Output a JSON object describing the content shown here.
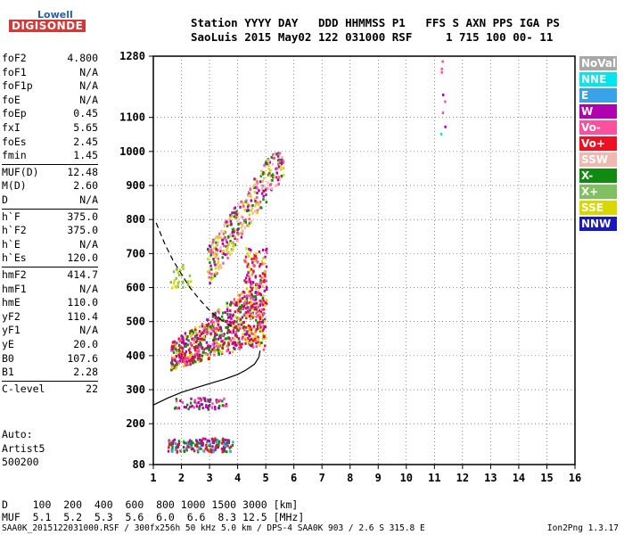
{
  "logo": {
    "line1": "Lowell",
    "line2": "DIGISONDE"
  },
  "header": {
    "line1": "Station YYYY DAY   DDD HHMMSS P1   FFS S AXN PPS IGA PS",
    "line2": "SaoLuis 2015 May02 122 031000 RSF     1 715 100 00- 11"
  },
  "params": [
    {
      "name": "foF2",
      "value": "4.800"
    },
    {
      "name": "foF1",
      "value": "N/A"
    },
    {
      "name": "foF1p",
      "value": "N/A"
    },
    {
      "name": "foE",
      "value": "N/A"
    },
    {
      "name": "foEp",
      "value": "0.45"
    },
    {
      "name": "fxI",
      "value": "5.65"
    },
    {
      "name": "foEs",
      "value": "2.45"
    },
    {
      "name": "fmin",
      "value": "1.45"
    },
    {
      "name": "MUF(D)",
      "value": "12.48"
    },
    {
      "name": "M(D)",
      "value": "2.60"
    },
    {
      "name": "D",
      "value": "N/A"
    },
    {
      "name": "h`F",
      "value": "375.0"
    },
    {
      "name": "h`F2",
      "value": "375.0"
    },
    {
      "name": "h`E",
      "value": "N/A"
    },
    {
      "name": "h`Es",
      "value": "120.0"
    },
    {
      "name": "hmF2",
      "value": "414.7"
    },
    {
      "name": "hmF1",
      "value": "N/A"
    },
    {
      "name": "hmE",
      "value": "110.0"
    },
    {
      "name": "yF2",
      "value": "110.4"
    },
    {
      "name": "yF1",
      "value": "N/A"
    },
    {
      "name": "yE",
      "value": "20.0"
    },
    {
      "name": "B0",
      "value": "107.6"
    },
    {
      "name": "B1",
      "value": "2.28"
    },
    {
      "name": "C-level",
      "value": "22"
    }
  ],
  "auto": {
    "line1": "Auto:",
    "line2": "Artist5",
    "line3": "500200"
  },
  "legend": [
    {
      "label": "NoVal",
      "color": "#a8a8a8"
    },
    {
      "label": "NNE",
      "color": "#00e5ee"
    },
    {
      "label": "E",
      "color": "#39a2e8"
    },
    {
      "label": "W",
      "color": "#b000b0"
    },
    {
      "label": "Vo-",
      "color": "#ff50a0"
    },
    {
      "label": "Vo+",
      "color": "#ee1020"
    },
    {
      "label": "SSW",
      "color": "#f2b8b0"
    },
    {
      "label": "X-",
      "color": "#108a10"
    },
    {
      "label": "X+",
      "color": "#80c060"
    },
    {
      "label": "SSE",
      "color": "#d8d800"
    },
    {
      "label": "NNW",
      "color": "#1818c0"
    }
  ],
  "muf_table": {
    "line1": "D    100  200  400  600  800 1000 1500 3000 [km]",
    "line2": "MUF  5.1  5.2  5.3  5.6  6.0  6.6  8.3 12.5 [MHz]"
  },
  "footer": "SAA0K_2015122031000.RSF / 300fx256h 50 kHz 5.0 km / DPS-4 SAA0K 903 / 2.6 S 315.8 E",
  "version": "Ion2Png 1.3.17",
  "chart_data": {
    "type": "scatter",
    "xlim": [
      1,
      16
    ],
    "ylim": [
      80,
      1280
    ],
    "x_ticks": [
      "1",
      "2",
      "3",
      "4",
      "5",
      "6",
      "7",
      "8",
      "9",
      "10",
      "11",
      "12",
      "13",
      "14",
      "15",
      "16"
    ],
    "y_ticks": [
      "80",
      "200",
      "300",
      "400",
      "500",
      "600",
      "700",
      "800",
      "900",
      "1000",
      "1100",
      "1280"
    ],
    "grid": true,
    "profile_curve": [
      [
        1.0,
        255
      ],
      [
        1.5,
        275
      ],
      [
        2.0,
        292
      ],
      [
        2.5,
        305
      ],
      [
        3.0,
        318
      ],
      [
        3.5,
        330
      ],
      [
        4.0,
        345
      ],
      [
        4.3,
        358
      ],
      [
        4.6,
        375
      ],
      [
        4.75,
        395
      ],
      [
        4.8,
        415
      ]
    ],
    "dashed_curve": [
      [
        1.1,
        790
      ],
      [
        1.4,
        730
      ],
      [
        1.7,
        680
      ],
      [
        2.0,
        640
      ],
      [
        2.3,
        600
      ],
      [
        2.7,
        560
      ],
      [
        3.1,
        525
      ],
      [
        3.5,
        500
      ],
      [
        3.9,
        480
      ]
    ],
    "clusters": [
      {
        "name": "F-trace-main",
        "x": [
          1.6,
          4.9
        ],
        "y": [
          360,
          560
        ],
        "colors": [
          "#ee1020",
          "#d8d800",
          "#108a10",
          "#b000b0",
          "#ff50a0"
        ],
        "count": 700
      },
      {
        "name": "F-trace-rise",
        "x": [
          4.2,
          5.0
        ],
        "y": [
          420,
          720
        ],
        "colors": [
          "#ee1020",
          "#b000b0",
          "#d8d800",
          "#ff50a0"
        ],
        "count": 180
      },
      {
        "name": "F2-second-hop",
        "x": [
          2.9,
          5.6
        ],
        "y": [
          640,
          1000
        ],
        "colors": [
          "#f2b8b0",
          "#d8d800",
          "#b000b0",
          "#ff50a0",
          "#108a10"
        ],
        "count": 360
      },
      {
        "name": "Es-layer",
        "x": [
          1.5,
          3.8
        ],
        "y": [
          120,
          160
        ],
        "colors": [
          "#108a10",
          "#b000b0",
          "#ee1020",
          "#39a2e8"
        ],
        "count": 160
      },
      {
        "name": "Es-second-hop",
        "x": [
          1.7,
          3.6
        ],
        "y": [
          245,
          280
        ],
        "colors": [
          "#108a10",
          "#b000b0",
          "#ff50a0"
        ],
        "count": 70
      },
      {
        "name": "low-F",
        "x": [
          1.5,
          2.3
        ],
        "y": [
          600,
          680
        ],
        "colors": [
          "#d8d800",
          "#80c060"
        ],
        "count": 30
      },
      {
        "name": "column-11",
        "x": [
          11.2,
          11.35
        ],
        "y": [
          1050,
          1280
        ],
        "colors": [
          "#ff50a0",
          "#b000b0",
          "#00e5ee"
        ],
        "count": 8
      }
    ]
  }
}
